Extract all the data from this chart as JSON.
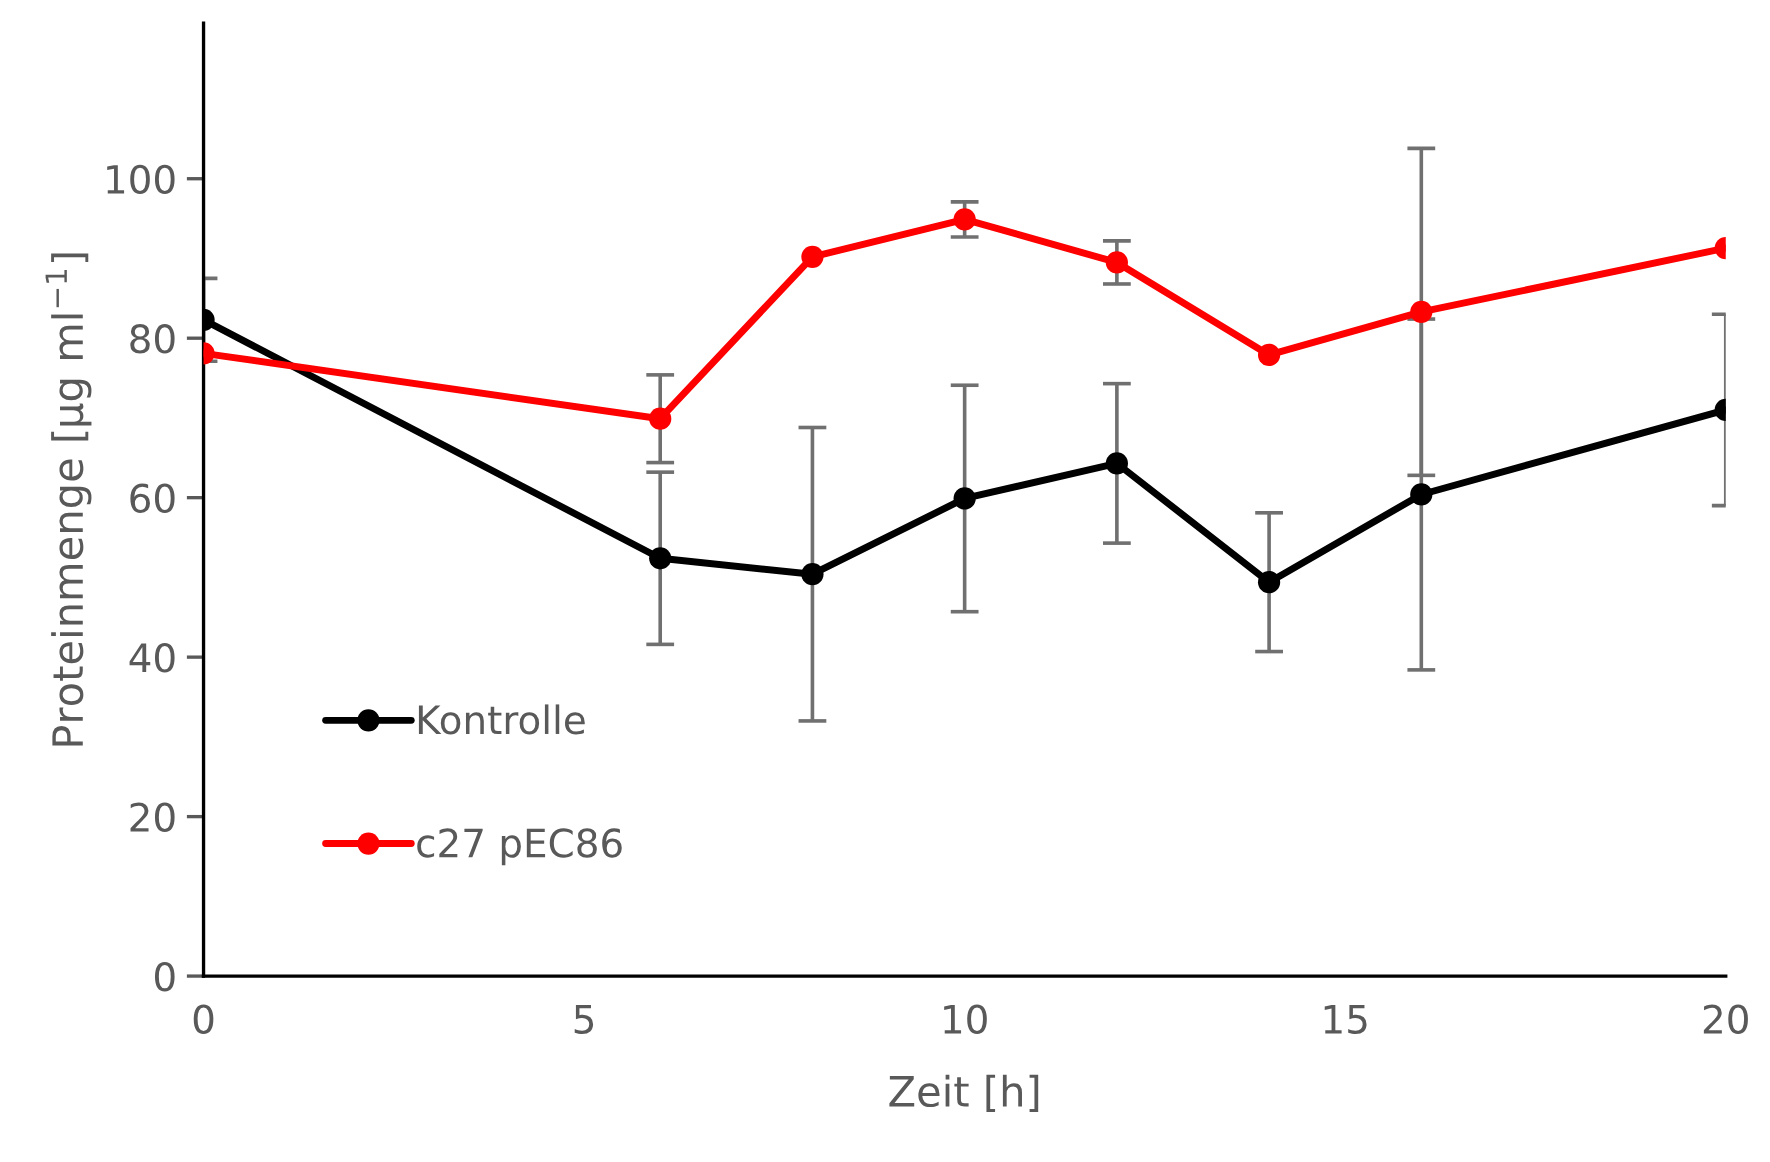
{
  "chart_data": {
    "type": "line",
    "xlabel": "Zeit [h]",
    "ylabel": "Proteinmenge [µg ml$^{−1}$]",
    "x": [
      0,
      6,
      8,
      10,
      12,
      14,
      16,
      20
    ],
    "series": [
      {
        "name": "Kontrolle",
        "color": "#000000",
        "values": [
          82.3,
          52.4,
          50.4,
          59.9,
          64.3,
          49.4,
          60.4,
          71.0
        ],
        "errors": [
          5.2,
          10.8,
          18.4,
          14.2,
          10,
          8.7,
          22,
          12
        ]
      },
      {
        "name": "c27 pEC86",
        "color": "#ff0000",
        "values": [
          78.1,
          69.9,
          90.2,
          94.9,
          89.5,
          77.9,
          83.3,
          91.3
        ],
        "errors": [
          null,
          5.5,
          null,
          2.2,
          2.7,
          null,
          20.5,
          null
        ]
      }
    ],
    "xlim": [
      0,
      20
    ],
    "xticks": [
      0,
      5,
      10,
      15,
      20
    ],
    "ylim": [
      0,
      119.5
    ],
    "yticks": [
      0,
      20,
      40,
      60,
      80,
      100
    ],
    "marker": "circle",
    "line_style": "solid",
    "legend": "bottom left",
    "grid": false
  }
}
